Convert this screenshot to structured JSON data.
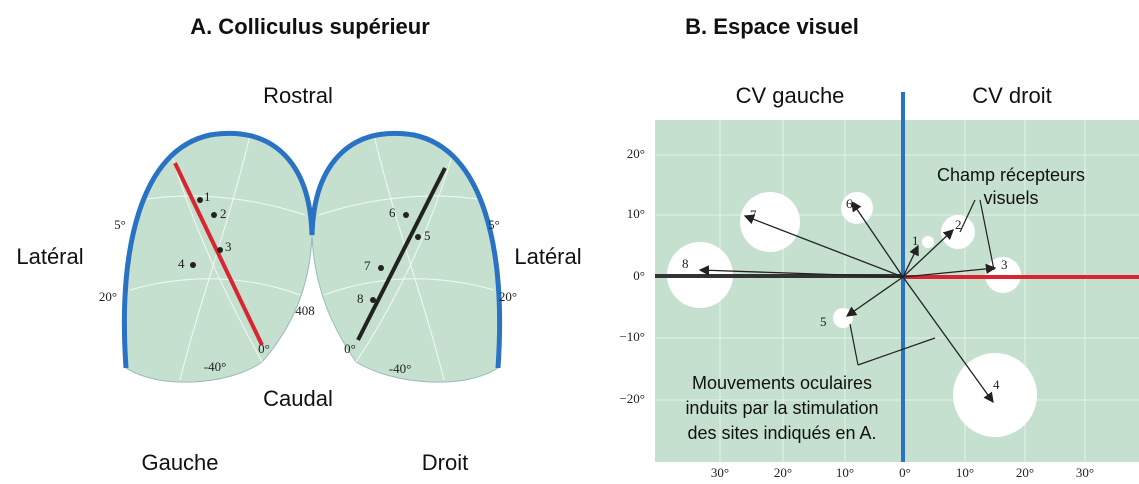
{
  "panel_a": {
    "title": "A.  Colliculus supérieur",
    "rostral": "Rostral",
    "caudal": "Caudal",
    "lateral_left": "Latéral",
    "lateral_right": "Latéral",
    "left": "Gauche",
    "right": "Droit",
    "angle_labels": [
      "5°",
      "20°",
      "-40°",
      "0°",
      "408",
      "5°",
      "20°",
      "-40°",
      "0°"
    ],
    "sites": [
      "1",
      "2",
      "3",
      "4",
      "5",
      "6",
      "7",
      "8"
    ]
  },
  "panel_b": {
    "title": "B.  Espace visuel",
    "left_field": "CV gauche",
    "right_field": "CV droit",
    "y_ticks": [
      "20°",
      "10°",
      "0°",
      "−10°",
      "−20°"
    ],
    "x_ticks": [
      "30°",
      "20°",
      "10°",
      "0°",
      "10°",
      "20°",
      "30°"
    ],
    "receptive_fields_label": [
      "Champ récepteurs",
      "visuels"
    ],
    "movements_label": [
      "Mouvements oculaires",
      "induits par la stimulation",
      "des sites indiqués en A."
    ],
    "vectors": [
      "1",
      "2",
      "3",
      "4",
      "5",
      "6",
      "7",
      "8"
    ]
  }
}
